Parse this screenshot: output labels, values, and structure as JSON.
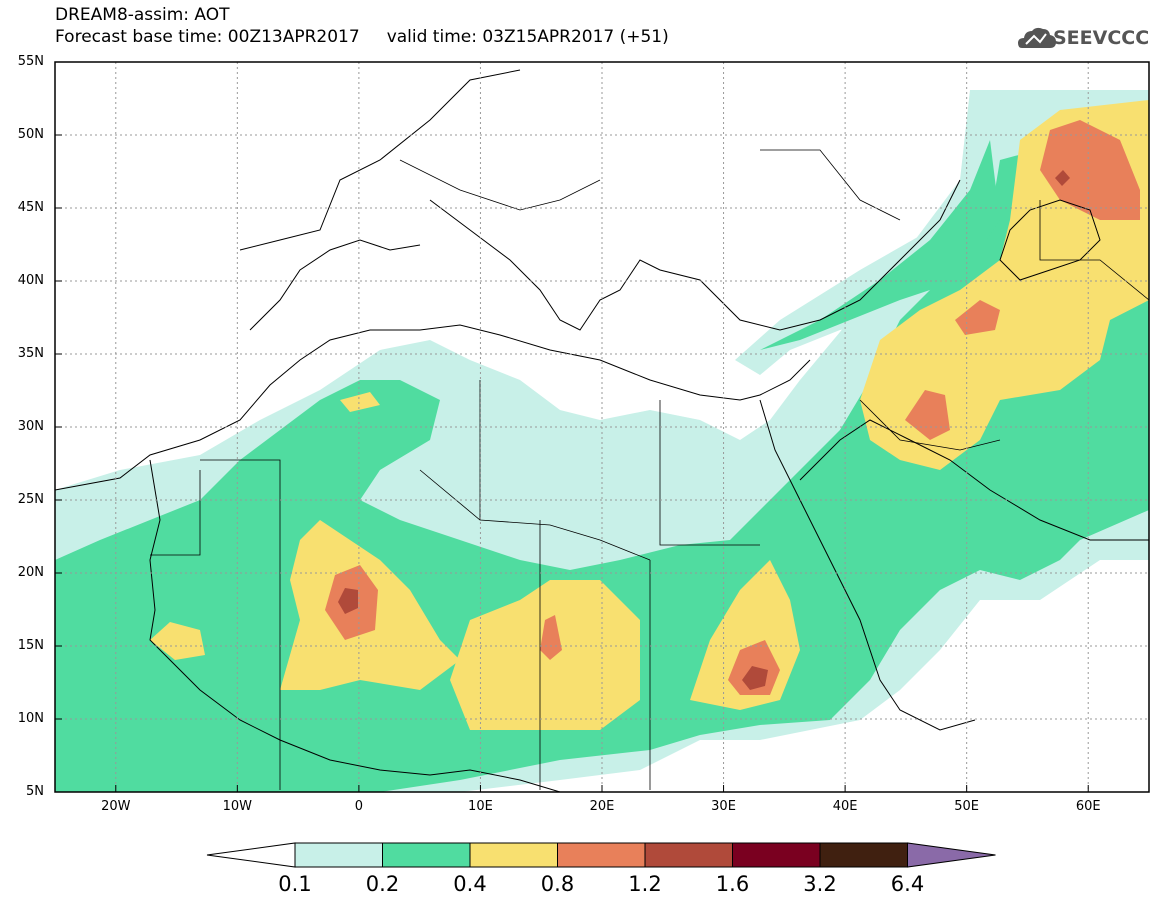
{
  "title": {
    "line1": "DREAM8-assim: AOT",
    "line2": "Forecast base time: 00Z13APR2017     valid time: 03Z15APR2017 (+51)"
  },
  "logo": {
    "text": "SEEVCCC",
    "icon": "cloud-icon"
  },
  "map": {
    "lat_range": [
      5,
      55
    ],
    "lon_range": [
      -25,
      65
    ],
    "lat_ticks": [
      {
        "label": "55N",
        "value": 55
      },
      {
        "label": "50N",
        "value": 50
      },
      {
        "label": "45N",
        "value": 45
      },
      {
        "label": "40N",
        "value": 40
      },
      {
        "label": "35N",
        "value": 35
      },
      {
        "label": "30N",
        "value": 30
      },
      {
        "label": "25N",
        "value": 25
      },
      {
        "label": "20N",
        "value": 20
      },
      {
        "label": "15N",
        "value": 15
      },
      {
        "label": "10N",
        "value": 10
      },
      {
        "label": "5N",
        "value": 5
      }
    ],
    "lon_ticks": [
      {
        "label": "20W",
        "value": -20
      },
      {
        "label": "10W",
        "value": -10
      },
      {
        "label": "0",
        "value": 0
      },
      {
        "label": "10E",
        "value": 10
      },
      {
        "label": "20E",
        "value": 20
      },
      {
        "label": "30E",
        "value": 30
      },
      {
        "label": "40E",
        "value": 40
      },
      {
        "label": "50E",
        "value": 50
      },
      {
        "label": "60E",
        "value": 60
      }
    ],
    "gridlines": "dotted"
  },
  "colorbar": {
    "labels": [
      "0.1",
      "0.2",
      "0.4",
      "0.8",
      "1.2",
      "1.6",
      "3.2",
      "6.4"
    ],
    "colors": [
      "#ffffff",
      "#c8f0e8",
      "#50dca0",
      "#f8e070",
      "#e8805a",
      "#b04a3a",
      "#7a0020",
      "#402010",
      "#8a6aa8"
    ]
  }
}
